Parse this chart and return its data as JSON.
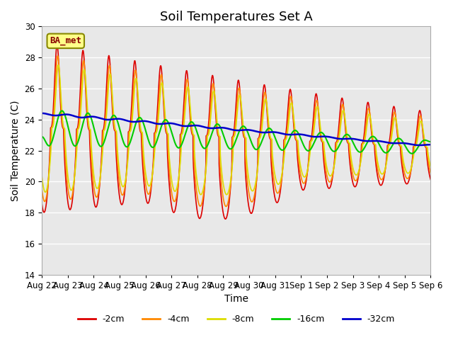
{
  "title": "Soil Temperatures Set A",
  "xlabel": "Time",
  "ylabel": "Soil Temperature (C)",
  "ylim": [
    14,
    30
  ],
  "background_color": "#e8e8e8",
  "grid_color": "white",
  "legend_labels": [
    "-2cm",
    "-4cm",
    "-8cm",
    "-16cm",
    "-32cm"
  ],
  "legend_colors": [
    "#dd0000",
    "#ff8800",
    "#dddd00",
    "#00cc00",
    "#0000cc"
  ],
  "line_widths": [
    1.2,
    1.2,
    1.2,
    1.5,
    1.8
  ],
  "tick_labels": [
    "Aug 22",
    "Aug 23",
    "Aug 24",
    "Aug 25",
    "Aug 26",
    "Aug 27",
    "Aug 28",
    "Aug 29",
    "Aug 30",
    "Aug 31",
    "Sep 1",
    "Sep 2",
    "Sep 3",
    "Sep 4",
    "Sep 5",
    "Sep 6"
  ],
  "ba_met_label": "BA_met",
  "ba_met_fgcolor": "#880000",
  "ba_met_bgcolor": "#ffff88",
  "ba_met_edgecolor": "#888800",
  "title_fontsize": 13,
  "axis_label_fontsize": 10,
  "tick_fontsize": 8.5
}
